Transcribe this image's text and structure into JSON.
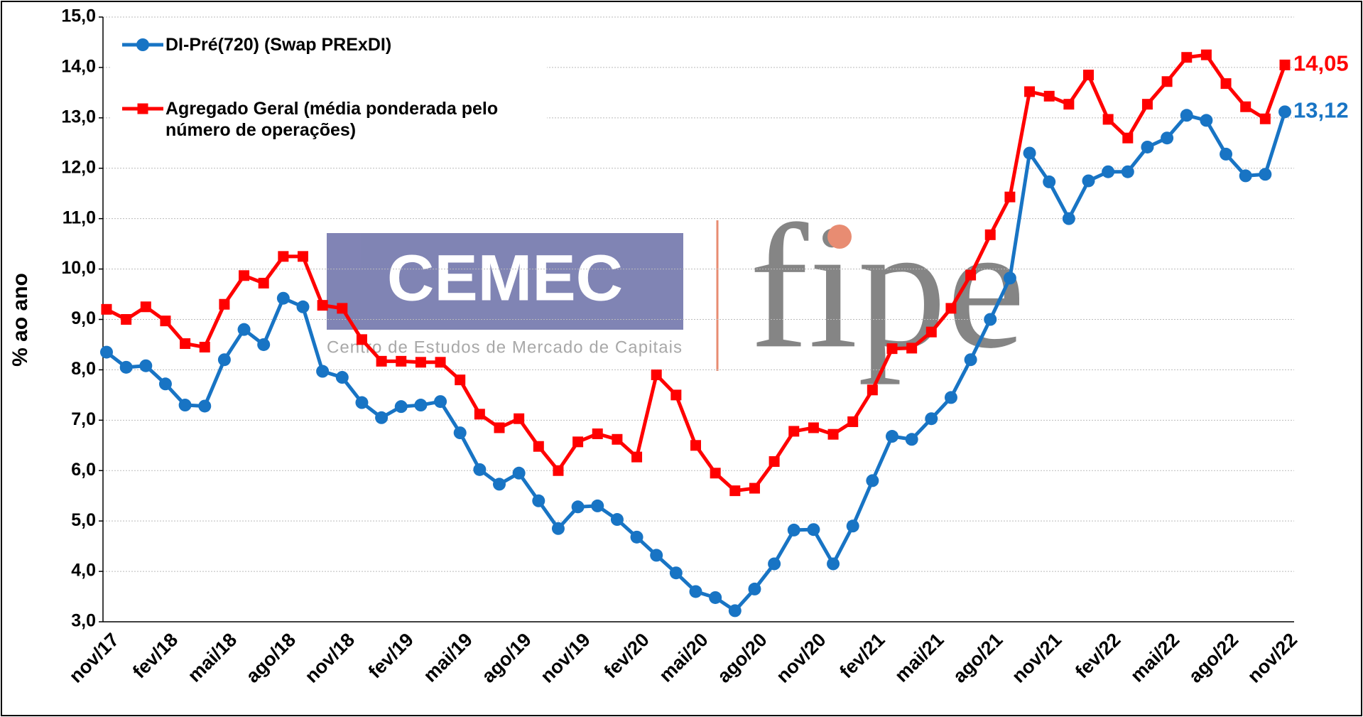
{
  "chart_data": {
    "type": "line",
    "watermark": {
      "logo": "CEMEC",
      "subtitle": "Centro de Estudos de Mercado de Capitais",
      "brand": "fipe"
    },
    "y_label": "% ao ano",
    "categories": [
      "nov/17",
      null,
      null,
      "fev/18",
      null,
      null,
      "mai/18",
      null,
      null,
      "ago/18",
      null,
      null,
      "nov/18",
      null,
      null,
      "fev/19",
      null,
      null,
      "mai/19",
      null,
      null,
      "ago/19",
      null,
      null,
      "nov/19",
      null,
      null,
      "fev/20",
      null,
      null,
      "mai/20",
      null,
      null,
      "ago/20",
      null,
      null,
      "nov/20",
      null,
      null,
      "fev/21",
      null,
      null,
      "mai/21",
      null,
      null,
      "ago/21",
      null,
      null,
      "nov/21",
      null,
      null,
      "fev/22",
      null,
      null,
      "mai/22",
      null,
      null,
      "ago/22",
      null,
      null,
      "nov/22"
    ],
    "series": [
      {
        "name": "DI-Pré(720) (Swap PRExDI)",
        "color": "#1874c4",
        "marker": "circle",
        "values": [
          8.35,
          8.05,
          8.08,
          7.72,
          7.3,
          7.28,
          8.2,
          8.8,
          8.5,
          9.42,
          9.25,
          7.97,
          7.85,
          7.35,
          7.05,
          7.27,
          7.3,
          7.37,
          6.75,
          6.02,
          5.73,
          5.95,
          5.4,
          4.85,
          5.28,
          5.3,
          5.03,
          4.68,
          4.32,
          3.97,
          3.6,
          3.48,
          3.22,
          3.65,
          4.15,
          4.82,
          4.83,
          4.15,
          4.9,
          5.8,
          6.68,
          6.62,
          7.03,
          7.45,
          8.2,
          9.0,
          9.82,
          12.3,
          11.73,
          11.0,
          11.75,
          11.93,
          11.93,
          12.42,
          12.6,
          13.05,
          12.95,
          12.28,
          11.85,
          11.88,
          13.12
        ],
        "value_labels": [
          null,
          null,
          null,
          null,
          null,
          null,
          null,
          null,
          null,
          null,
          null,
          null,
          null,
          null,
          null,
          null,
          null,
          null,
          null,
          null,
          null,
          null,
          null,
          null,
          null,
          null,
          null,
          null,
          null,
          null,
          null,
          null,
          null,
          null,
          null,
          null,
          null,
          null,
          null,
          null,
          null,
          null,
          null,
          null,
          null,
          null,
          null,
          null,
          null,
          null,
          null,
          null,
          null,
          null,
          null,
          null,
          null,
          null,
          null,
          null,
          "13,12"
        ]
      },
      {
        "name": "Agregado Geral (média ponderada pelo número de operações)",
        "color": "#ff0000",
        "marker": "square",
        "values": [
          9.2,
          9.0,
          9.25,
          8.97,
          8.52,
          8.45,
          9.3,
          9.87,
          9.72,
          10.25,
          10.25,
          9.28,
          9.22,
          8.6,
          8.17,
          8.17,
          8.15,
          8.15,
          7.8,
          7.12,
          6.85,
          7.03,
          6.48,
          6.0,
          6.57,
          6.73,
          6.62,
          6.27,
          7.9,
          7.5,
          6.5,
          5.95,
          5.6,
          5.65,
          6.18,
          6.78,
          6.85,
          6.72,
          6.97,
          7.6,
          8.42,
          8.43,
          8.75,
          9.22,
          9.88,
          10.68,
          11.43,
          13.52,
          13.43,
          13.27,
          13.85,
          12.97,
          12.6,
          13.27,
          13.72,
          14.2,
          14.25,
          13.68,
          13.22,
          12.98,
          14.05
        ],
        "value_labels": [
          null,
          null,
          null,
          null,
          null,
          null,
          null,
          null,
          null,
          null,
          null,
          null,
          null,
          null,
          null,
          null,
          null,
          null,
          null,
          null,
          null,
          null,
          null,
          null,
          null,
          null,
          null,
          null,
          null,
          null,
          null,
          null,
          null,
          null,
          null,
          null,
          null,
          null,
          null,
          null,
          null,
          null,
          null,
          null,
          null,
          null,
          null,
          null,
          null,
          null,
          null,
          null,
          null,
          null,
          null,
          null,
          null,
          null,
          null,
          null,
          "14,05"
        ]
      }
    ],
    "ylim": [
      3,
      15
    ],
    "yticks": [
      {
        "value": 3,
        "label": "3,0"
      },
      {
        "value": 4,
        "label": "4,0"
      },
      {
        "value": 5,
        "label": "5,0"
      },
      {
        "value": 6,
        "label": "6,0"
      },
      {
        "value": 7,
        "label": "7,0"
      },
      {
        "value": 8,
        "label": "8,0"
      },
      {
        "value": 9,
        "label": "9,0"
      },
      {
        "value": 10,
        "label": "10,0"
      },
      {
        "value": 11,
        "label": "11,0"
      },
      {
        "value": 12,
        "label": "12,0"
      },
      {
        "value": 13,
        "label": "13,0"
      },
      {
        "value": 14,
        "label": "14,0"
      },
      {
        "value": 15,
        "label": "15,0"
      }
    ],
    "grid": true,
    "legend": "top-left"
  }
}
